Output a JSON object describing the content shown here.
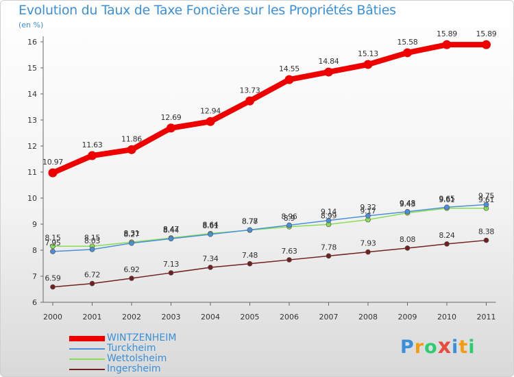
{
  "title": "Evolution du Taux de Taxe Foncière sur les Propriétés Bâties",
  "unit_label": "(en %)",
  "brand": {
    "letters": [
      "P",
      "r",
      "o",
      "x",
      "i",
      "t",
      "i"
    ],
    "colors": [
      "#3a8fd8",
      "#f39c12",
      "#2ecc71",
      "#e74c3c",
      "#3a8fd8",
      "#f39c12",
      "#2ecc71"
    ]
  },
  "chart_data": {
    "type": "line",
    "title": "Evolution du Taux de Taxe Foncière sur les Propriétés Bâties",
    "ylabel": "(en %)",
    "xlabel": "",
    "x": [
      "2000",
      "2001",
      "2002",
      "2003",
      "2004",
      "2005",
      "2006",
      "2007",
      "2008",
      "2009",
      "2010",
      "2011"
    ],
    "ylim": [
      6,
      16
    ],
    "yticks": [
      "6",
      "7",
      "8",
      "9",
      "10",
      "11",
      "12",
      "13",
      "14",
      "15",
      "16"
    ],
    "grid": false,
    "legend_position": "bottom-left",
    "series": [
      {
        "name": "WINTZENHEIM",
        "color": "#ee0000",
        "values": [
          10.97,
          11.63,
          11.86,
          12.69,
          12.94,
          13.73,
          14.55,
          14.84,
          15.13,
          15.58,
          15.89,
          15.89
        ],
        "labels": [
          "10.97",
          "11.63",
          "11.86",
          "12.69",
          "12.94",
          "13.73",
          "14.55",
          "14.84",
          "15.13",
          "15.58",
          "15.89",
          "15.89"
        ]
      },
      {
        "name": "Turckheim",
        "color": "#4a90d9",
        "values": [
          7.95,
          8.03,
          8.27,
          8.44,
          8.61,
          8.78,
          8.96,
          9.14,
          9.32,
          9.48,
          9.65,
          9.75
        ],
        "labels": [
          "7.95",
          "8.03",
          "8.27",
          "8.44",
          "8.61",
          "8.78",
          "8.96",
          "9.14",
          "9.32",
          "9.48",
          "9.65",
          "9.75"
        ]
      },
      {
        "name": "Wettolsheim",
        "color": "#88dd55",
        "values": [
          8.15,
          8.15,
          8.31,
          8.47,
          8.64,
          8.77,
          8.9,
          8.99,
          9.17,
          9.43,
          9.61,
          9.61
        ],
        "labels": [
          "8.15",
          "8.15",
          "8.31",
          "8.47",
          "8.64",
          "8.77",
          "8.9",
          "8.99",
          "9.17",
          "9.43",
          "9.61",
          "9.61"
        ]
      },
      {
        "name": "Ingersheim",
        "color": "#702020",
        "values": [
          6.59,
          6.72,
          6.92,
          7.13,
          7.34,
          7.48,
          7.63,
          7.78,
          7.93,
          8.08,
          8.24,
          8.38
        ],
        "labels": [
          "6.59",
          "6.72",
          "6.92",
          "7.13",
          "7.34",
          "7.48",
          "7.63",
          "7.78",
          "7.93",
          "8.08",
          "8.24",
          "8.38"
        ]
      }
    ]
  }
}
